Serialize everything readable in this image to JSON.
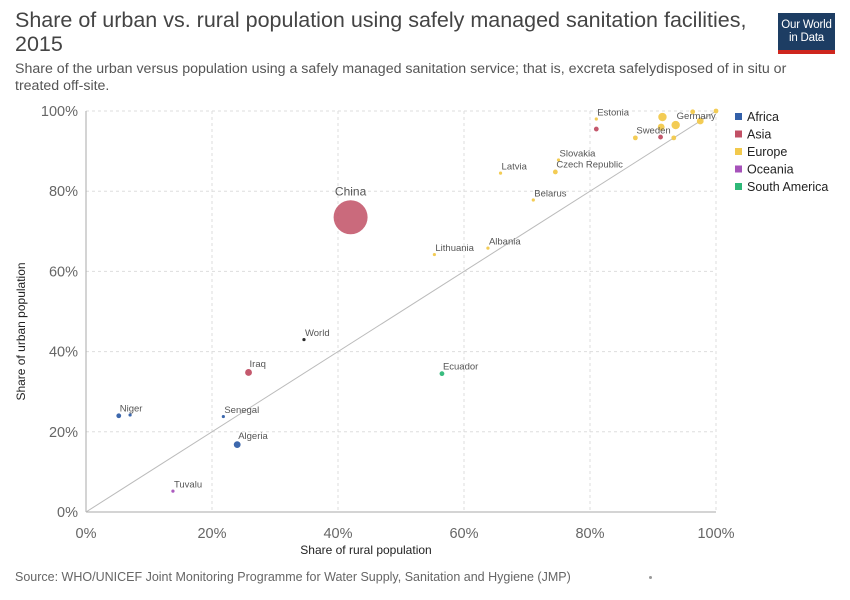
{
  "header": {
    "title": "Share of urban vs. rural population using safely managed sanitation facilities, 2015",
    "subtitle": "Share of the urban versus population using a safely managed sanitation service; that is, excreta safelydisposed of in situ or treated off-site.",
    "logo_line1": "Our World",
    "logo_line2": "in Data"
  },
  "footer": {
    "source": "Source: WHO/UNICEF Joint Monitoring Programme for Water Supply, Sanitation and Hygiene (JMP)"
  },
  "colors": {
    "Africa": "#3360a9",
    "Asia": "#c15065",
    "Europe": "#f2c94c",
    "Oceania": "#a652ba",
    "South America": "#2eb878",
    "World": "#222222",
    "grid": "#dddddd",
    "diagonal": "#bbbbbb"
  },
  "chart_data": {
    "type": "scatter",
    "xlabel": "Share of rural population",
    "ylabel": "Share of urban population",
    "xlim": [
      0,
      100
    ],
    "ylim": [
      0,
      100
    ],
    "x_ticks": [
      "0%",
      "20%",
      "40%",
      "60%",
      "80%",
      "100%"
    ],
    "y_ticks": [
      "0%",
      "20%",
      "40%",
      "60%",
      "80%",
      "100%"
    ],
    "grid": true,
    "reference_line": "y = x",
    "legend_position": "right",
    "legend": [
      "Africa",
      "Asia",
      "Europe",
      "Oceania",
      "South America"
    ],
    "points": [
      {
        "label": "China",
        "x": 42,
        "y": 73.5,
        "group": "Asia",
        "size": 5
      },
      {
        "label": "Iraq",
        "x": 25.8,
        "y": 34.8,
        "group": "Asia",
        "size": 2
      },
      {
        "label": "",
        "x": 81,
        "y": 95.5,
        "group": "Asia",
        "size": 1
      },
      {
        "label": "",
        "x": 91.2,
        "y": 93.5,
        "group": "Asia",
        "size": 1
      },
      {
        "label": "Estonia",
        "x": 81,
        "y": 98,
        "group": "Europe",
        "size": 0
      },
      {
        "label": "Germany",
        "x": 93.6,
        "y": 96.5,
        "group": "Europe",
        "size": 3
      },
      {
        "label": "",
        "x": 91.5,
        "y": 98.5,
        "group": "Europe",
        "size": 3
      },
      {
        "label": "",
        "x": 91.3,
        "y": 96.0,
        "group": "Europe",
        "size": 2
      },
      {
        "label": "",
        "x": 97.5,
        "y": 97.5,
        "group": "Europe",
        "size": 2
      },
      {
        "label": "",
        "x": 96.3,
        "y": 99.8,
        "group": "Europe",
        "size": 1
      },
      {
        "label": "",
        "x": 100,
        "y": 100,
        "group": "Europe",
        "size": 1
      },
      {
        "label": "",
        "x": 93.3,
        "y": 93.3,
        "group": "Europe",
        "size": 1
      },
      {
        "label": "Sweden",
        "x": 87.2,
        "y": 93.3,
        "group": "Europe",
        "size": 1
      },
      {
        "label": "Slovakia",
        "x": 75.0,
        "y": 87.8,
        "group": "Europe",
        "size": 0
      },
      {
        "label": "Czech Republic",
        "x": 74.5,
        "y": 84.8,
        "group": "Europe",
        "size": 1
      },
      {
        "label": "Latvia",
        "x": 65.8,
        "y": 84.5,
        "group": "Europe",
        "size": 0
      },
      {
        "label": "Belarus",
        "x": 71.0,
        "y": 77.8,
        "group": "Europe",
        "size": 0
      },
      {
        "label": "Lithuania",
        "x": 55.3,
        "y": 64.2,
        "group": "Europe",
        "size": 0
      },
      {
        "label": "Albania",
        "x": 63.8,
        "y": 65.8,
        "group": "Europe",
        "size": 0
      },
      {
        "label": "World",
        "x": 34.6,
        "y": 43.0,
        "group": "World",
        "size": 0
      },
      {
        "label": "Ecuador",
        "x": 56.5,
        "y": 34.5,
        "group": "South America",
        "size": 1
      },
      {
        "label": "Niger",
        "x": 5.2,
        "y": 24.0,
        "group": "Africa",
        "size": 1
      },
      {
        "label": "",
        "x": 7.0,
        "y": 24.2,
        "group": "Africa",
        "size": 0
      },
      {
        "label": "Senegal",
        "x": 21.8,
        "y": 23.8,
        "group": "Africa",
        "size": 0
      },
      {
        "label": "Algeria",
        "x": 24.0,
        "y": 16.8,
        "group": "Africa",
        "size": 2
      },
      {
        "label": "Tuvalu",
        "x": 13.8,
        "y": 5.2,
        "group": "Oceania",
        "size": 0
      }
    ]
  }
}
